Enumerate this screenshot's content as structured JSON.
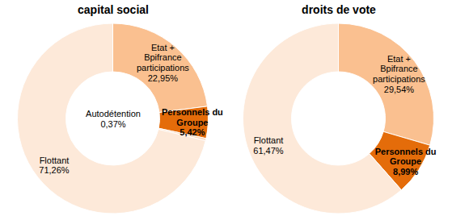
{
  "chart_data": [
    {
      "type": "pie",
      "title": "capital social",
      "categories": [
        "Etat + Bpifrance participations",
        "Personnels du Groupe",
        "Autodétention",
        "Flottant"
      ],
      "values": [
        22.95,
        5.42,
        0.37,
        71.26
      ],
      "value_labels": [
        "22,95%",
        "5,42%",
        "0,37%",
        "71,26%"
      ],
      "colors": [
        "#fac090",
        "#e46c0a",
        "#fcd5b5",
        "#fde9d9"
      ],
      "data_labels": true,
      "tick_labels": false
    },
    {
      "type": "pie",
      "title": "droits de vote",
      "categories": [
        "Etat + Bpifrance participations",
        "Personnels du Groupe",
        "Flottant"
      ],
      "values": [
        29.54,
        8.99,
        61.47
      ],
      "value_labels": [
        "29,54%",
        "8,99%",
        "61,47%"
      ],
      "colors": [
        "#fac090",
        "#e46c0a",
        "#fde9d9"
      ],
      "data_labels": true,
      "tick_labels": false
    }
  ]
}
